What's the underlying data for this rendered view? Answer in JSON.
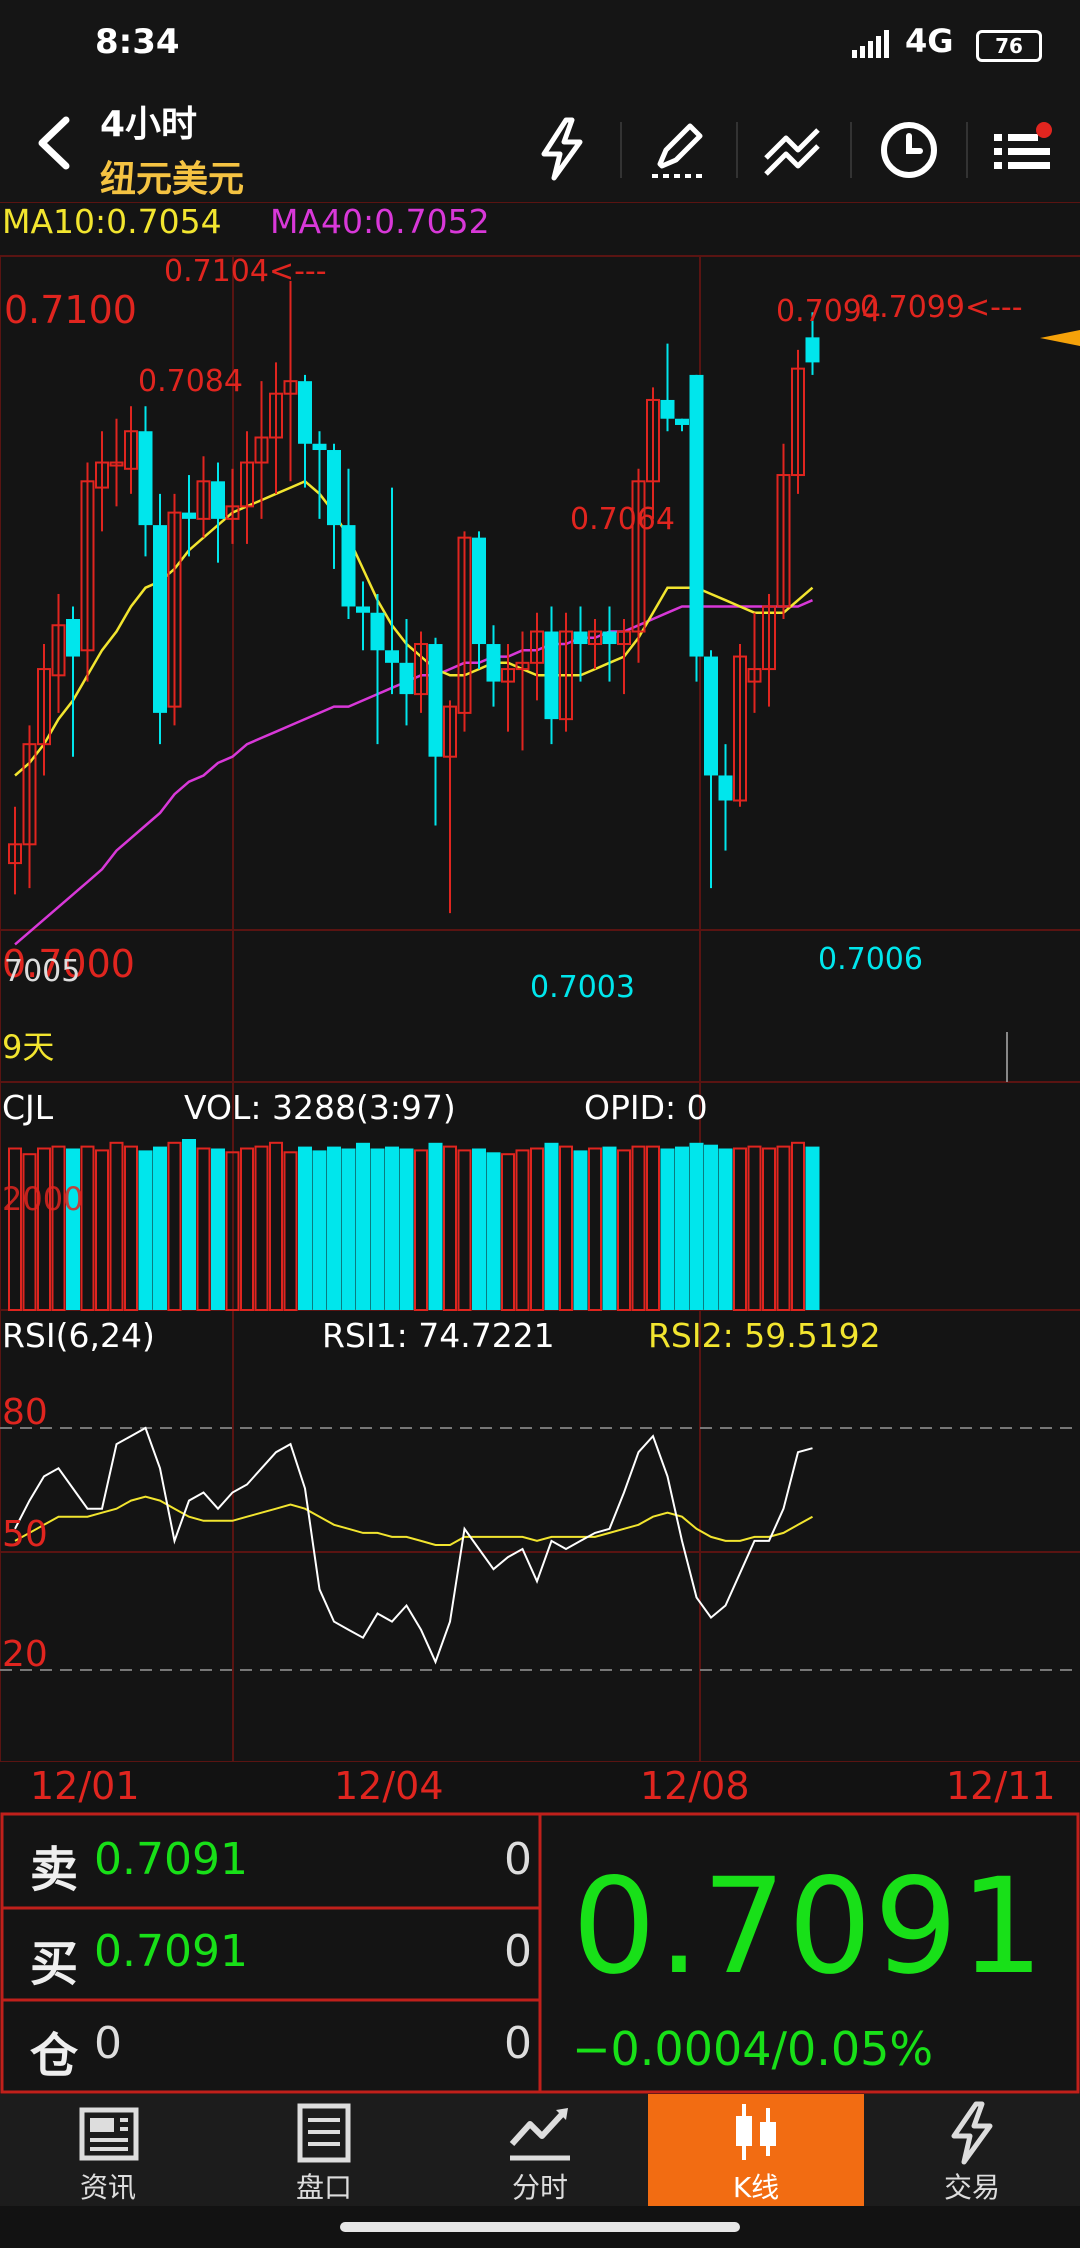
{
  "status": {
    "time": "8:34",
    "network": "4G",
    "battery": "76"
  },
  "header": {
    "period": "4小时",
    "symbol": "纽元美元"
  },
  "toolbar_icons": [
    "flash-icon",
    "draw-pen-icon",
    "trendline-icon",
    "clock-icon",
    "menu-list-icon"
  ],
  "indicators": {
    "ma10": "MA10:0.7054",
    "ma40": "MA40:0.7052",
    "days": "9天",
    "cjl": "CJL",
    "vol": "VOL: 3288(3:97)",
    "opid": "OPID: 0",
    "vol_level": "2000",
    "rsi": "RSI(6,24)",
    "rsi1": "RSI1: 74.7221",
    "rsi2": "RSI2: 59.5192"
  },
  "chart_data": {
    "type": "candlestick",
    "price_axis": {
      "labels": [
        "0.7100",
        "0.7000"
      ],
      "range": [
        0.6992,
        0.7108
      ]
    },
    "annotations": {
      "high_left": "0.7104<---",
      "p0": "0.7084",
      "p1": "0.7064",
      "p2": "0.7094",
      "high_right": "0.7099<---",
      "low0": "7005",
      "low1": "0.7003",
      "low2": "0.7006"
    },
    "candles": [
      [
        0.7011,
        0.7014,
        0.7006,
        0.702
      ],
      [
        0.7014,
        0.703,
        0.7007,
        0.7033
      ],
      [
        0.703,
        0.7042,
        0.7025,
        0.7046
      ],
      [
        0.7041,
        0.7049,
        0.7035,
        0.7054
      ],
      [
        0.705,
        0.7044,
        0.7028,
        0.7052
      ],
      [
        0.7045,
        0.7072,
        0.704,
        0.7075
      ],
      [
        0.7071,
        0.7075,
        0.7064,
        0.708
      ],
      [
        0.7075,
        0.7075,
        0.7068,
        0.7082
      ],
      [
        0.7074,
        0.708,
        0.707,
        0.7084
      ],
      [
        0.708,
        0.7065,
        0.706,
        0.7084
      ],
      [
        0.7065,
        0.7035,
        0.703,
        0.707
      ],
      [
        0.7036,
        0.7067,
        0.7033,
        0.707
      ],
      [
        0.7067,
        0.7066,
        0.706,
        0.7073
      ],
      [
        0.7066,
        0.7072,
        0.7063,
        0.7076
      ],
      [
        0.7072,
        0.7066,
        0.7059,
        0.7075
      ],
      [
        0.7066,
        0.7068,
        0.7062,
        0.7074
      ],
      [
        0.7068,
        0.7075,
        0.7062,
        0.708
      ],
      [
        0.7075,
        0.7079,
        0.7066,
        0.7088
      ],
      [
        0.7079,
        0.7086,
        0.707,
        0.7091
      ],
      [
        0.7086,
        0.7088,
        0.7072,
        0.7104
      ],
      [
        0.7088,
        0.7078,
        0.7071,
        0.7089
      ],
      [
        0.7078,
        0.7077,
        0.7066,
        0.708
      ],
      [
        0.7077,
        0.7065,
        0.7058,
        0.7078
      ],
      [
        0.7065,
        0.7052,
        0.705,
        0.7074
      ],
      [
        0.7052,
        0.7051,
        0.7045,
        0.7056
      ],
      [
        0.7051,
        0.7045,
        0.703,
        0.7054
      ],
      [
        0.7045,
        0.7043,
        0.7038,
        0.7071
      ],
      [
        0.7043,
        0.7038,
        0.7033,
        0.705
      ],
      [
        0.7038,
        0.7046,
        0.7035,
        0.7048
      ],
      [
        0.7046,
        0.7028,
        0.7017,
        0.7047
      ],
      [
        0.7028,
        0.7036,
        0.7003,
        0.7037
      ],
      [
        0.7035,
        0.7063,
        0.7032,
        0.7064
      ],
      [
        0.7063,
        0.7046,
        0.7042,
        0.7064
      ],
      [
        0.7046,
        0.704,
        0.7036,
        0.7049
      ],
      [
        0.704,
        0.7042,
        0.7032,
        0.7046
      ],
      [
        0.7042,
        0.7043,
        0.7029,
        0.7048
      ],
      [
        0.7043,
        0.7048,
        0.7037,
        0.7051
      ],
      [
        0.7048,
        0.7034,
        0.703,
        0.7052
      ],
      [
        0.7034,
        0.7048,
        0.7032,
        0.7051
      ],
      [
        0.7048,
        0.7046,
        0.704,
        0.7052
      ],
      [
        0.7046,
        0.7048,
        0.7042,
        0.705
      ],
      [
        0.7048,
        0.7046,
        0.704,
        0.7052
      ],
      [
        0.7046,
        0.7048,
        0.7038,
        0.705
      ],
      [
        0.7048,
        0.7072,
        0.7043,
        0.7074
      ],
      [
        0.7072,
        0.7085,
        0.7066,
        0.7087
      ],
      [
        0.7085,
        0.7082,
        0.708,
        0.7094
      ],
      [
        0.7082,
        0.7081,
        0.708,
        0.7082
      ],
      [
        0.7089,
        0.7044,
        0.704,
        0.7089
      ],
      [
        0.7044,
        0.7025,
        0.7007,
        0.7045
      ],
      [
        0.7025,
        0.7021,
        0.7013,
        0.703
      ],
      [
        0.7021,
        0.7044,
        0.702,
        0.7046
      ],
      [
        0.704,
        0.7042,
        0.7035,
        0.7051
      ],
      [
        0.7042,
        0.7052,
        0.7036,
        0.7054
      ],
      [
        0.7052,
        0.7073,
        0.705,
        0.7078
      ],
      [
        0.7073,
        0.709,
        0.707,
        0.7093
      ],
      [
        0.7095,
        0.7091,
        0.7089,
        0.7099
      ]
    ],
    "ma10": [
      0.7025,
      0.7027,
      0.703,
      0.7034,
      0.7037,
      0.7041,
      0.7045,
      0.7048,
      0.7052,
      0.7055,
      0.7056,
      0.7058,
      0.7061,
      0.7063,
      0.7065,
      0.7067,
      0.7068,
      0.7069,
      0.707,
      0.7071,
      0.7072,
      0.707,
      0.7067,
      0.7063,
      0.7058,
      0.7053,
      0.7049,
      0.7046,
      0.7044,
      0.7042,
      0.7041,
      0.7041,
      0.7042,
      0.7043,
      0.7043,
      0.7042,
      0.7041,
      0.7041,
      0.7041,
      0.7041,
      0.7042,
      0.7043,
      0.7044,
      0.7047,
      0.7051,
      0.7055,
      0.7055,
      0.7055,
      0.7054,
      0.7053,
      0.7052,
      0.7051,
      0.7051,
      0.7051,
      0.7053,
      0.7055
    ],
    "ma40": [
      0.6998,
      0.7,
      0.7002,
      0.7004,
      0.7006,
      0.7008,
      0.701,
      0.7013,
      0.7015,
      0.7017,
      0.7019,
      0.7022,
      0.7024,
      0.7025,
      0.7027,
      0.7028,
      0.703,
      0.7031,
      0.7032,
      0.7033,
      0.7034,
      0.7035,
      0.7036,
      0.7036,
      0.7037,
      0.7038,
      0.7039,
      0.704,
      0.7041,
      0.7041,
      0.7042,
      0.7043,
      0.7043,
      0.7044,
      0.7044,
      0.7045,
      0.7045,
      0.7046,
      0.7046,
      0.7047,
      0.7047,
      0.7048,
      0.7048,
      0.7049,
      0.705,
      0.7051,
      0.7052,
      0.7052,
      0.7052,
      0.7052,
      0.7052,
      0.7052,
      0.7052,
      0.7052,
      0.7052,
      0.7053
    ],
    "volume": [
      0.85,
      0.82,
      0.85,
      0.86,
      0.85,
      0.86,
      0.84,
      0.88,
      0.86,
      0.84,
      0.86,
      0.88,
      0.9,
      0.85,
      0.85,
      0.83,
      0.85,
      0.86,
      0.88,
      0.83,
      0.86,
      0.84,
      0.86,
      0.85,
      0.88,
      0.85,
      0.86,
      0.85,
      0.84,
      0.88,
      0.86,
      0.84,
      0.85,
      0.83,
      0.82,
      0.84,
      0.85,
      0.88,
      0.86,
      0.84,
      0.85,
      0.86,
      0.84,
      0.86,
      0.86,
      0.85,
      0.86,
      0.88,
      0.87,
      0.85,
      0.85,
      0.86,
      0.85,
      0.86,
      0.88,
      0.86
    ],
    "rsi1": [
      55,
      62,
      68,
      70,
      65,
      60,
      60,
      76,
      78,
      80,
      70,
      52,
      62,
      64,
      60,
      64,
      66,
      70,
      74,
      76,
      65,
      40,
      32,
      30,
      28,
      34,
      32,
      36,
      30,
      22,
      32,
      55,
      50,
      45,
      48,
      50,
      42,
      52,
      50,
      52,
      54,
      55,
      64,
      74,
      78,
      68,
      52,
      38,
      33,
      36,
      44,
      52,
      52,
      60,
      74,
      75
    ],
    "rsi2": [
      52,
      54,
      56,
      58,
      58,
      58,
      59,
      60,
      62,
      63,
      62,
      60,
      58,
      57,
      57,
      57,
      58,
      59,
      60,
      61,
      60,
      58,
      56,
      55,
      54,
      54,
      53,
      53,
      52,
      51,
      51,
      53,
      53,
      53,
      53,
      53,
      52,
      53,
      53,
      53,
      53,
      54,
      55,
      56,
      58,
      59,
      58,
      55,
      53,
      52,
      52,
      53,
      53,
      54,
      56,
      58
    ],
    "rsi_axis": [
      "80",
      "50",
      "20"
    ],
    "x_labels": [
      "12/01",
      "12/04",
      "12/08",
      "12/11"
    ]
  },
  "trade": {
    "sell_label": "卖",
    "sell_price": "0.7091",
    "sell_qty": "0",
    "buy_label": "买",
    "buy_price": "0.7091",
    "buy_qty": "0",
    "pos_label": "仓",
    "pos_value": "0",
    "pos_qty": "0",
    "last_price": "0.7091",
    "change": "−0.0004/0.05%"
  },
  "tabs": [
    {
      "label": "资讯",
      "icon": "news-icon"
    },
    {
      "label": "盘口",
      "icon": "orderbook-icon"
    },
    {
      "label": "分时",
      "icon": "timeshare-icon"
    },
    {
      "label": "K线",
      "icon": "candlestick-icon"
    },
    {
      "label": "交易",
      "icon": "trade-flash-icon"
    }
  ],
  "colors": {
    "up": "#e0251f",
    "down": "#00e6ec",
    "ma10": "#f2e52f",
    "ma40": "#d838d8",
    "accent": "#f26c12",
    "price": "#18e018"
  }
}
